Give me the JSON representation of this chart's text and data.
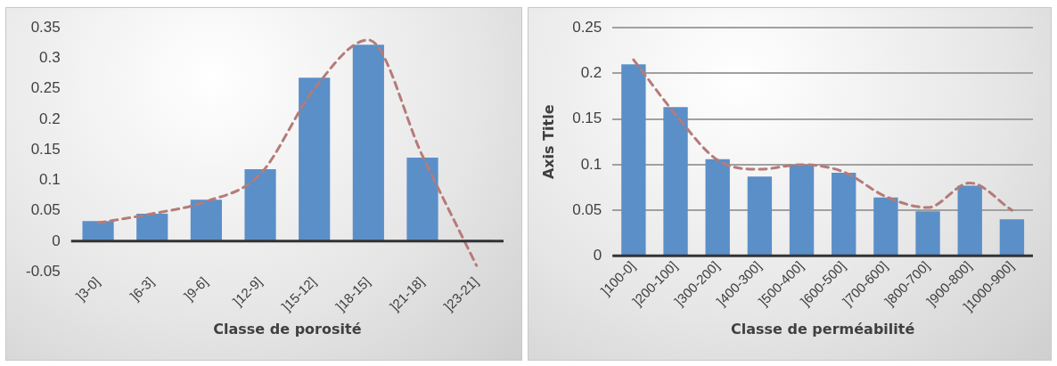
{
  "chart_data": [
    {
      "type": "bar",
      "xlabel": "Classe de porosité",
      "categories": [
        "]3-0]",
        "]6-3]",
        "]9-6]",
        "]12-9]",
        "]15-12]",
        "]18-15]",
        "]21-18]",
        "]23-21]"
      ],
      "series": [
        {
          "color": "#5b8fc8",
          "values": [
            0.033,
            0.045,
            0.068,
            0.118,
            0.268,
            0.322,
            0.137,
            0.002
          ]
        },
        {
          "type": "line",
          "color": "#b57b79",
          "line_style": "dashed",
          "values": [
            0.03,
            0.045,
            0.065,
            0.11,
            0.25,
            0.33,
            0.14,
            -0.04
          ]
        }
      ],
      "ylim": [
        -0.05,
        0.35
      ],
      "yticks": [
        -0.05,
        0,
        0.05,
        0.1,
        0.15,
        0.2,
        0.25,
        0.3,
        0.35
      ],
      "grid": false,
      "legend": false,
      "marker": "none"
    },
    {
      "type": "bar",
      "xlabel": "Classe de perméabilité",
      "ylabel": "Axis Title",
      "categories": [
        "]100-0]",
        "]200-100]",
        "]300-200]",
        "]400-300]",
        "]500-400]",
        "]600-500]",
        "]700-600]",
        "]800-700]",
        "]900-800]",
        "]1000-900]"
      ],
      "series": [
        {
          "color": "#5b8fc8",
          "values": [
            0.21,
            0.163,
            0.106,
            0.087,
            0.1,
            0.091,
            0.064,
            0.049,
            0.077,
            0.04
          ]
        },
        {
          "type": "line",
          "color": "#b57b79",
          "line_style": "dashed",
          "values": [
            0.215,
            0.155,
            0.105,
            0.095,
            0.1,
            0.092,
            0.065,
            0.053,
            0.08,
            0.05
          ]
        }
      ],
      "ylim": [
        0,
        0.25
      ],
      "yticks": [
        0,
        0.05,
        0.1,
        0.15,
        0.2,
        0.25
      ],
      "grid": "y",
      "legend": false,
      "marker": "none"
    }
  ]
}
